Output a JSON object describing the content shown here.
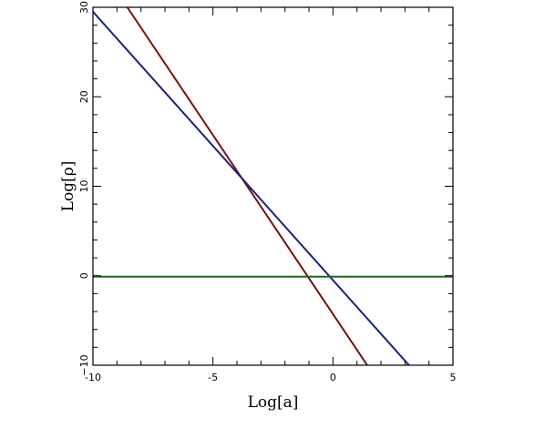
{
  "chart_data": {
    "type": "line",
    "xlabel": "Log[a]",
    "ylabel": "Log[ρ]",
    "xlim": [
      -10,
      5
    ],
    "ylim": [
      -10,
      30
    ],
    "x_ticks": [
      -10,
      -5,
      0,
      5
    ],
    "y_ticks": [
      -10,
      0,
      10,
      20,
      30
    ],
    "x_tick_labels": [
      "-10",
      "-5",
      "0",
      "5"
    ],
    "y_tick_labels": [
      "−10",
      "0",
      "10",
      "20",
      "30"
    ],
    "grid": false,
    "legend": "none",
    "series": [
      {
        "color": "#7a0f0f",
        "x": [
          -8.57,
          1.43
        ],
        "y": [
          30,
          -10
        ]
      },
      {
        "color": "#1a237e",
        "x": [
          -10,
          3.17
        ],
        "y": [
          29.5,
          -10
        ]
      },
      {
        "color": "#1b6a1b",
        "x": [
          -10,
          5
        ],
        "y": [
          -0.1,
          -0.1
        ]
      }
    ]
  }
}
